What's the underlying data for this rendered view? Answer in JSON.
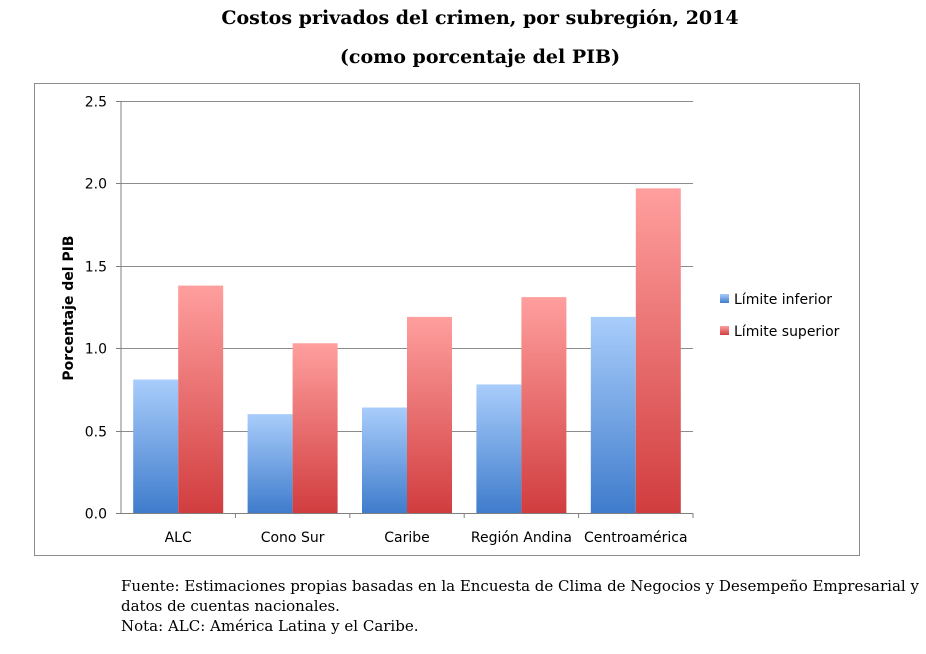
{
  "chart_data": {
    "type": "bar",
    "title": "Costos privados del crimen, por subregión, 2014",
    "subtitle": "(como porcentaje del PIB)",
    "xlabel": "",
    "ylabel": "Porcentaje del PIB",
    "ylim": [
      0,
      2.5
    ],
    "yticks": [
      "0.0",
      "0.5",
      "1.0",
      "1.5",
      "2.0",
      "2.5"
    ],
    "grid": true,
    "legend_position": "right",
    "categories": [
      "ALC",
      "Cono Sur",
      "Caribe",
      "Región Andina",
      "Centroamérica"
    ],
    "series": [
      {
        "name": "Límite inferior",
        "color": "#4a86cf",
        "values": [
          0.81,
          0.6,
          0.64,
          0.78,
          1.19
        ]
      },
      {
        "name": "Límite superior",
        "color": "#d34a4a",
        "values": [
          1.38,
          1.03,
          1.19,
          1.31,
          1.97
        ]
      }
    ]
  },
  "footnotes": {
    "source_line1": "Fuente: Estimaciones propias basadas en la Encuesta de Clima de Negocios y Desempeño Empresarial y",
    "source_line2": "datos de cuentas nacionales.",
    "note": "Nota: ALC:  América Latina y el Caribe."
  }
}
